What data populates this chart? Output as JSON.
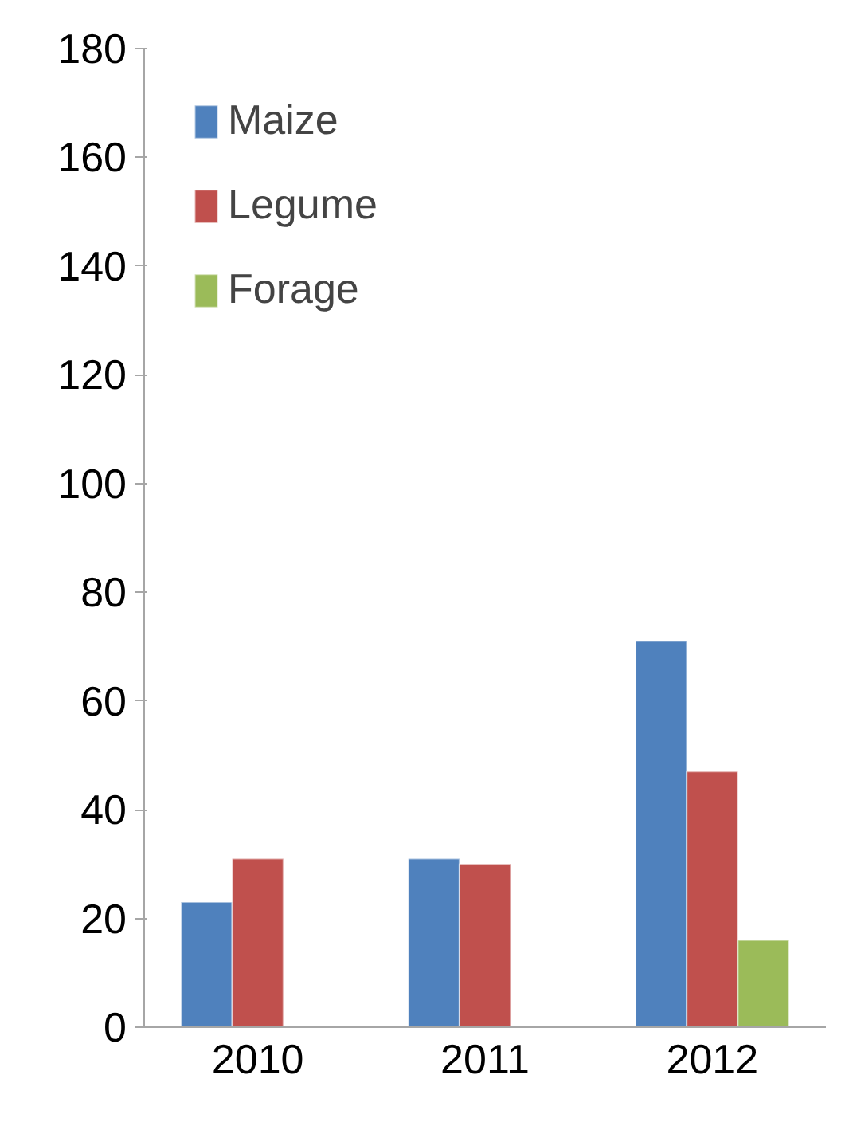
{
  "chart_data": {
    "type": "bar",
    "categories": [
      "2010",
      "2011",
      "2012"
    ],
    "series": [
      {
        "name": "Maize",
        "color": "#4f81bd",
        "values": [
          23,
          31,
          71
        ]
      },
      {
        "name": "Legume",
        "color": "#c0504d",
        "values": [
          31,
          30,
          47
        ]
      },
      {
        "name": "Forage",
        "color": "#9bbb59",
        "values": [
          null,
          null,
          16
        ]
      }
    ],
    "ylim": [
      0,
      180
    ],
    "yticks": [
      0,
      20,
      40,
      60,
      80,
      100,
      120,
      140,
      160,
      180
    ],
    "grid": false,
    "legend": "top left"
  }
}
